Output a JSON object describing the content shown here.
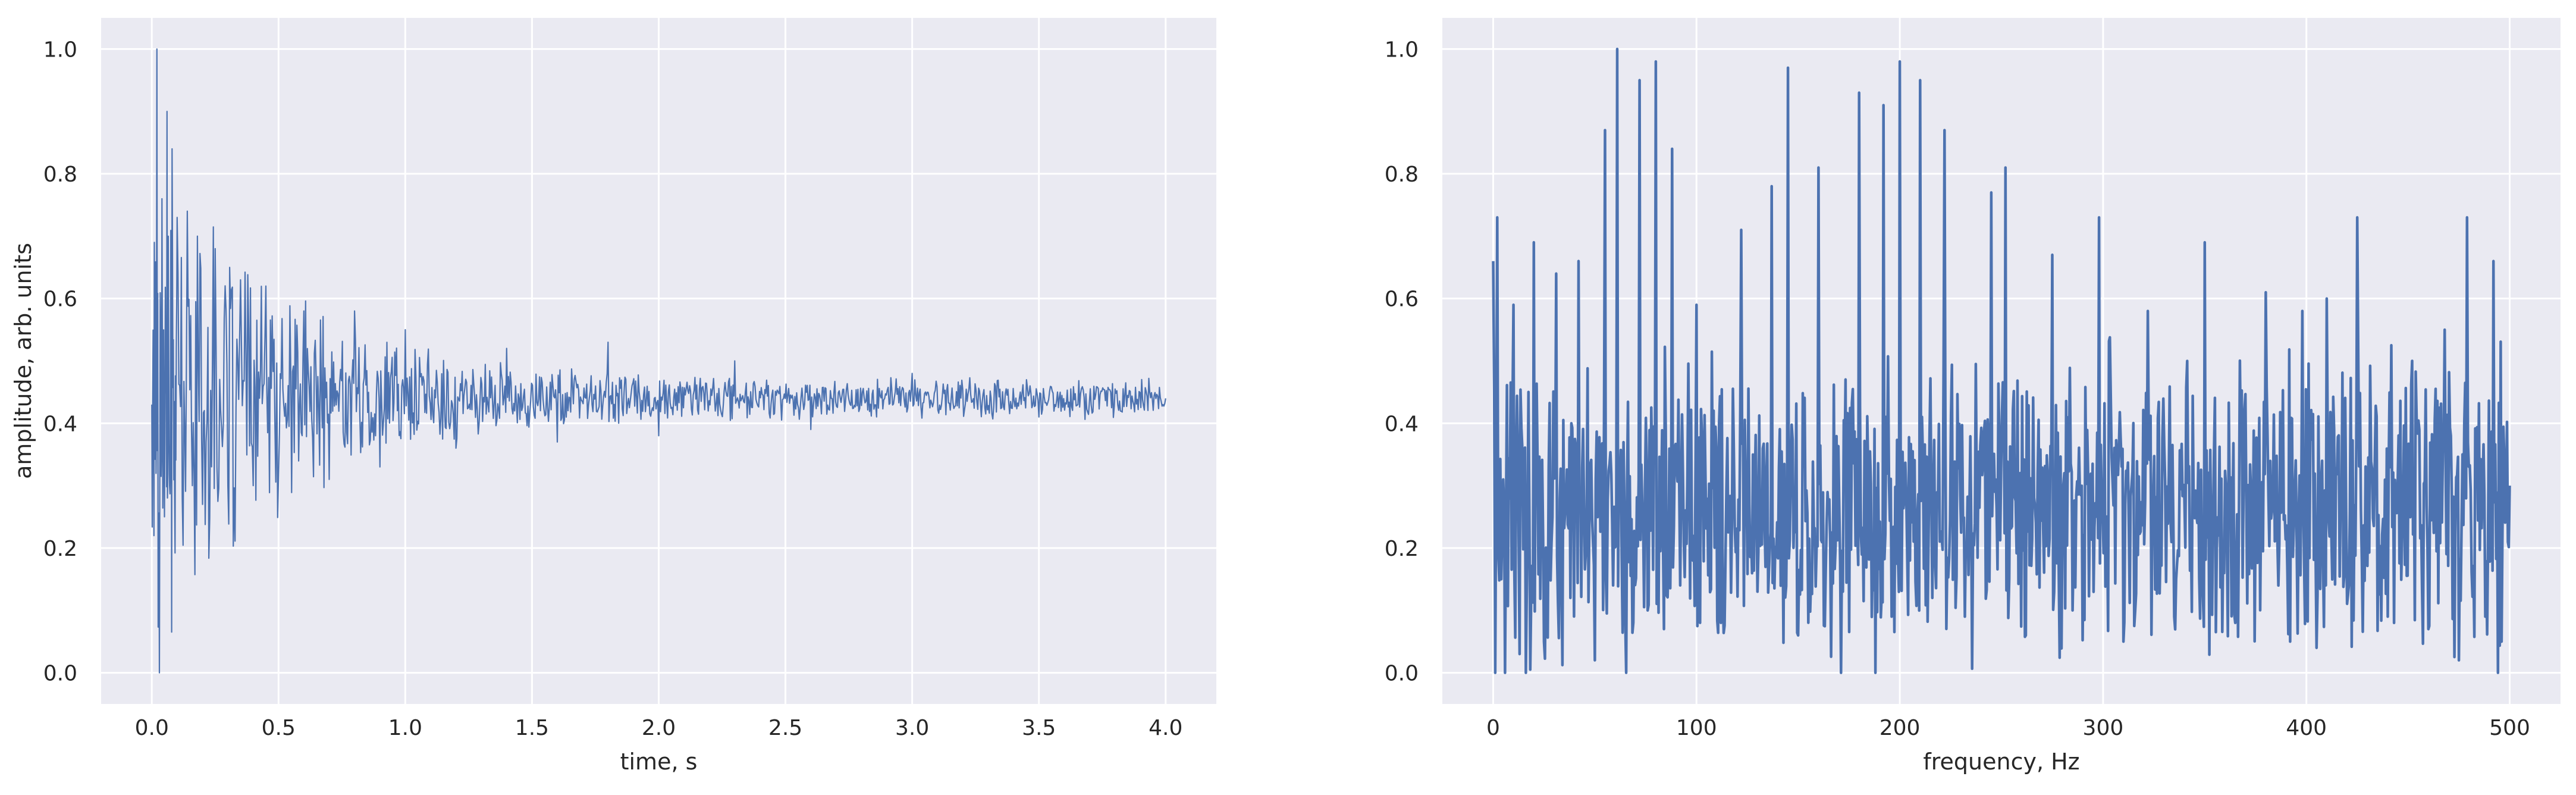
{
  "chart_data": [
    {
      "type": "line",
      "xlabel": "time, s",
      "ylabel": "amplitude, arb. units",
      "xlim": [
        -0.2,
        4.2
      ],
      "ylim": [
        -0.05,
        1.05
      ],
      "xticks": [
        0.0,
        0.5,
        1.0,
        1.5,
        2.0,
        2.5,
        3.0,
        3.5,
        4.0
      ],
      "xtick_labels": [
        "0.0",
        "0.5",
        "1.0",
        "1.5",
        "2.0",
        "2.5",
        "3.0",
        "3.5",
        "4.0"
      ],
      "yticks": [
        0.0,
        0.2,
        0.4,
        0.6,
        0.8,
        1.0
      ],
      "ytick_labels": [
        "0.0",
        "0.2",
        "0.4",
        "0.6",
        "0.8",
        "1.0"
      ],
      "grid": true,
      "legend": "none",
      "color": "#4c72b0",
      "series": [
        {
          "x": [
            0.0,
            0.01,
            0.02,
            0.03,
            0.04,
            0.05,
            0.06,
            0.07,
            0.08,
            0.09,
            0.1,
            0.12,
            0.14,
            0.16,
            0.18,
            0.2,
            0.25,
            0.3,
            0.35,
            0.4,
            0.45,
            0.5,
            0.6,
            0.7,
            0.8,
            0.9,
            1.0,
            1.2,
            1.4,
            1.6,
            1.8,
            2.0,
            2.3,
            2.6,
            3.0,
            3.5,
            4.0
          ],
          "y": [
            0.43,
            0.69,
            1.0,
            0.0,
            0.76,
            0.25,
            0.9,
            0.3,
            0.84,
            0.29,
            0.73,
            0.28,
            0.74,
            0.3,
            0.7,
            0.27,
            0.68,
            0.3,
            0.63,
            0.3,
            0.62,
            0.32,
            0.58,
            0.31,
            0.58,
            0.33,
            0.55,
            0.36,
            0.52,
            0.37,
            0.53,
            0.38,
            0.5,
            0.39,
            0.48,
            0.41,
            0.44
          ]
        }
      ]
    },
    {
      "type": "line",
      "xlabel": "frequency, Hz",
      "ylabel": "",
      "xlim": [
        -25,
        525
      ],
      "ylim": [
        -0.05,
        1.05
      ],
      "xticks": [
        0,
        100,
        200,
        300,
        400,
        500
      ],
      "xtick_labels": [
        "0",
        "100",
        "200",
        "300",
        "400",
        "500"
      ],
      "yticks": [
        0.0,
        0.2,
        0.4,
        0.6,
        0.8,
        1.0
      ],
      "ytick_labels": [
        "0.0",
        "0.2",
        "0.4",
        "0.6",
        "0.8",
        "1.0"
      ],
      "grid": true,
      "legend": "none",
      "color": "#4c72b0",
      "series": [
        {
          "x": [
            0,
            2,
            4,
            10,
            13,
            20,
            25,
            31,
            38,
            42,
            50,
            55,
            59,
            61,
            65,
            72,
            76,
            80,
            84,
            88,
            92,
            100,
            112,
            122,
            130,
            137,
            145,
            150,
            160,
            172,
            180,
            188,
            192,
            196,
            200,
            205,
            210,
            216,
            222,
            232,
            245,
            252,
            262,
            275,
            285,
            298,
            310,
            322,
            335,
            350,
            365,
            380,
            392,
            398,
            405,
            410,
            425,
            440,
            452,
            460,
            468,
            475,
            479,
            488,
            492,
            496,
            500
          ],
          "y": [
            0.66,
            0.73,
            0.15,
            0.59,
            0.03,
            0.69,
            0.05,
            0.64,
            0.12,
            0.66,
            0.02,
            0.87,
            0.14,
            1.0,
            0.08,
            0.95,
            0.1,
            0.98,
            0.07,
            0.84,
            0.14,
            0.59,
            0.08,
            0.71,
            0.13,
            0.78,
            0.97,
            0.06,
            0.81,
            0.13,
            0.93,
            0.0,
            0.91,
            0.09,
            0.98,
            0.18,
            0.95,
            0.12,
            0.87,
            0.09,
            0.77,
            0.81,
            0.06,
            0.67,
            0.1,
            0.73,
            0.05,
            0.58,
            0.09,
            0.69,
            0.08,
            0.61,
            0.05,
            0.58,
            0.04,
            0.6,
            0.73,
            0.09,
            0.5,
            0.07,
            0.55,
            0.02,
            0.73,
            0.09,
            0.66,
            0.05,
            0.3
          ]
        }
      ]
    }
  ]
}
